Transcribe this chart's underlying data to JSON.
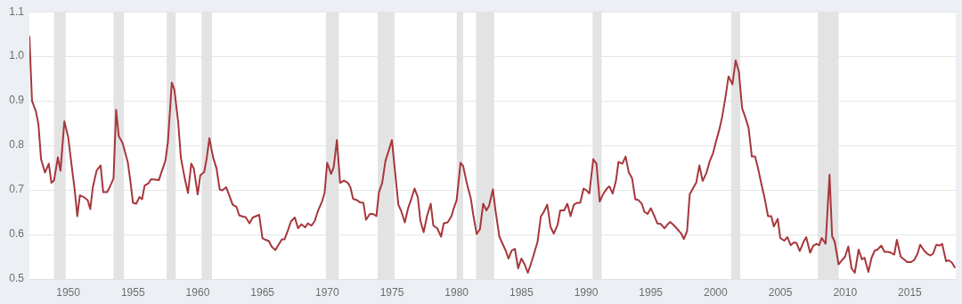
{
  "chart_data": {
    "type": "line",
    "x": [
      1947.0,
      1947.2,
      1947.5,
      1947.7,
      1947.9,
      1948.2,
      1948.5,
      1948.7,
      1948.9,
      1949.2,
      1949.4,
      1949.7,
      1950.0,
      1950.3,
      1950.5,
      1950.7,
      1950.9,
      1951.2,
      1951.5,
      1951.7,
      1951.9,
      1952.2,
      1952.5,
      1952.7,
      1953.0,
      1953.2,
      1953.5,
      1953.7,
      1953.9,
      1954.2,
      1954.6,
      1954.8,
      1955.0,
      1955.25,
      1955.5,
      1955.7,
      1955.9,
      1956.2,
      1956.4,
      1956.7,
      1957.0,
      1957.2,
      1957.5,
      1957.7,
      1958.0,
      1958.2,
      1958.5,
      1958.7,
      1959.0,
      1959.25,
      1959.5,
      1959.7,
      1960.0,
      1960.2,
      1960.5,
      1960.7,
      1960.9,
      1961.2,
      1961.45,
      1961.7,
      1961.9,
      1962.2,
      1962.4,
      1962.7,
      1963.0,
      1963.2,
      1963.5,
      1963.7,
      1964.0,
      1964.25,
      1964.5,
      1964.75,
      1965.0,
      1965.25,
      1965.5,
      1965.7,
      1966.0,
      1966.2,
      1966.5,
      1966.7,
      1967.0,
      1967.2,
      1967.5,
      1967.75,
      1968.0,
      1968.3,
      1968.5,
      1968.8,
      1969.05,
      1969.3,
      1969.6,
      1969.8,
      1970.0,
      1970.3,
      1970.5,
      1970.75,
      1971.0,
      1971.3,
      1971.6,
      1971.8,
      1972.0,
      1972.3,
      1972.55,
      1972.8,
      1973.0,
      1973.3,
      1973.55,
      1973.8,
      1974.0,
      1974.25,
      1974.5,
      1974.75,
      1975.0,
      1975.25,
      1975.5,
      1975.7,
      1976.0,
      1976.25,
      1976.5,
      1976.75,
      1977.0,
      1977.2,
      1977.45,
      1977.7,
      1978.0,
      1978.2,
      1978.5,
      1978.8,
      1979.0,
      1979.3,
      1979.6,
      1979.8,
      1980.0,
      1980.3,
      1980.5,
      1980.8,
      1981.1,
      1981.3,
      1981.55,
      1981.8,
      1982.05,
      1982.3,
      1982.5,
      1982.8,
      1983.0,
      1983.3,
      1983.55,
      1983.8,
      1984.0,
      1984.25,
      1984.5,
      1984.75,
      1985.0,
      1985.25,
      1985.5,
      1985.8,
      1986.0,
      1986.25,
      1986.5,
      1986.7,
      1987.0,
      1987.25,
      1987.5,
      1987.8,
      1988.0,
      1988.3,
      1988.55,
      1988.8,
      1989.05,
      1989.3,
      1989.55,
      1989.8,
      1990.0,
      1990.25,
      1990.55,
      1990.8,
      1991.05,
      1991.3,
      1991.6,
      1991.8,
      1992.05,
      1992.3,
      1992.5,
      1992.8,
      1993.05,
      1993.3,
      1993.55,
      1993.8,
      1994.05,
      1994.3,
      1994.5,
      1994.75,
      1995.0,
      1995.25,
      1995.5,
      1995.8,
      1996.05,
      1996.3,
      1996.5,
      1996.8,
      1997.05,
      1997.35,
      1997.55,
      1997.8,
      1998.0,
      1998.3,
      1998.5,
      1998.75,
      1999.0,
      1999.3,
      1999.55,
      1999.8,
      2000.0,
      2000.3,
      2000.5,
      2000.75,
      2001.0,
      2001.3,
      2001.55,
      2001.8,
      2002.05,
      2002.3,
      2002.55,
      2002.8,
      2003.05,
      2003.3,
      2003.5,
      2003.8,
      2004.05,
      2004.3,
      2004.5,
      2004.8,
      2005.0,
      2005.3,
      2005.55,
      2005.8,
      2006.05,
      2006.25,
      2006.5,
      2006.8,
      2007.0,
      2007.3,
      2007.55,
      2007.8,
      2008.0,
      2008.2,
      2008.5,
      2008.8,
      2009.0,
      2009.2,
      2009.5,
      2009.75,
      2010.0,
      2010.25,
      2010.5,
      2010.75,
      2011.05,
      2011.3,
      2011.5,
      2011.8,
      2012.05,
      2012.3,
      2012.5,
      2012.8,
      2013.05,
      2013.3,
      2013.55,
      2013.8,
      2014.0,
      2014.3,
      2014.6,
      2014.8,
      2015.1,
      2015.35,
      2015.6,
      2015.8,
      2016.1,
      2016.35,
      2016.6,
      2016.8,
      2017.05,
      2017.3,
      2017.5,
      2017.8,
      2018.0,
      2018.25,
      2018.5
    ],
    "series": [
      {
        "color": "#a6373c",
        "values": [
          1.046,
          0.9,
          0.877,
          0.847,
          0.769,
          0.739,
          0.759,
          0.716,
          0.721,
          0.773,
          0.743,
          0.854,
          0.818,
          0.746,
          0.7,
          0.641,
          0.688,
          0.684,
          0.677,
          0.657,
          0.706,
          0.744,
          0.755,
          0.695,
          0.695,
          0.706,
          0.726,
          0.88,
          0.821,
          0.805,
          0.762,
          0.72,
          0.671,
          0.669,
          0.684,
          0.679,
          0.71,
          0.715,
          0.724,
          0.723,
          0.722,
          0.74,
          0.765,
          0.808,
          0.941,
          0.925,
          0.85,
          0.772,
          0.726,
          0.693,
          0.759,
          0.748,
          0.69,
          0.733,
          0.74,
          0.772,
          0.816,
          0.772,
          0.749,
          0.701,
          0.699,
          0.706,
          0.691,
          0.667,
          0.662,
          0.643,
          0.64,
          0.639,
          0.625,
          0.638,
          0.641,
          0.644,
          0.592,
          0.588,
          0.585,
          0.573,
          0.565,
          0.575,
          0.589,
          0.589,
          0.612,
          0.629,
          0.638,
          0.614,
          0.623,
          0.616,
          0.625,
          0.62,
          0.631,
          0.654,
          0.674,
          0.693,
          0.761,
          0.736,
          0.751,
          0.812,
          0.716,
          0.721,
          0.716,
          0.705,
          0.68,
          0.677,
          0.672,
          0.671,
          0.633,
          0.646,
          0.646,
          0.641,
          0.695,
          0.716,
          0.765,
          0.788,
          0.812,
          0.739,
          0.667,
          0.654,
          0.627,
          0.659,
          0.68,
          0.703,
          0.684,
          0.631,
          0.605,
          0.64,
          0.669,
          0.62,
          0.614,
          0.595,
          0.625,
          0.627,
          0.641,
          0.661,
          0.677,
          0.761,
          0.754,
          0.713,
          0.68,
          0.641,
          0.601,
          0.612,
          0.669,
          0.654,
          0.664,
          0.701,
          0.654,
          0.595,
          0.579,
          0.563,
          0.546,
          0.564,
          0.568,
          0.524,
          0.546,
          0.533,
          0.514,
          0.54,
          0.559,
          0.584,
          0.64,
          0.649,
          0.667,
          0.617,
          0.602,
          0.622,
          0.654,
          0.654,
          0.669,
          0.641,
          0.667,
          0.671,
          0.671,
          0.703,
          0.7,
          0.692,
          0.769,
          0.759,
          0.674,
          0.69,
          0.703,
          0.708,
          0.692,
          0.72,
          0.763,
          0.759,
          0.775,
          0.739,
          0.726,
          0.679,
          0.677,
          0.669,
          0.651,
          0.646,
          0.659,
          0.643,
          0.625,
          0.623,
          0.614,
          0.623,
          0.628,
          0.62,
          0.612,
          0.602,
          0.59,
          0.608,
          0.69,
          0.706,
          0.716,
          0.755,
          0.72,
          0.739,
          0.765,
          0.782,
          0.805,
          0.837,
          0.863,
          0.906,
          0.955,
          0.937,
          0.991,
          0.965,
          0.883,
          0.863,
          0.839,
          0.775,
          0.775,
          0.746,
          0.718,
          0.68,
          0.641,
          0.641,
          0.618,
          0.635,
          0.592,
          0.586,
          0.594,
          0.576,
          0.582,
          0.581,
          0.563,
          0.584,
          0.594,
          0.559,
          0.575,
          0.579,
          0.576,
          0.592,
          0.579,
          0.734,
          0.596,
          0.584,
          0.533,
          0.542,
          0.55,
          0.573,
          0.524,
          0.514,
          0.566,
          0.544,
          0.548,
          0.516,
          0.548,
          0.564,
          0.566,
          0.575,
          0.561,
          0.561,
          0.559,
          0.555,
          0.588,
          0.55,
          0.543,
          0.538,
          0.538,
          0.543,
          0.557,
          0.577,
          0.564,
          0.557,
          0.553,
          0.557,
          0.577,
          0.575,
          0.579,
          0.54,
          0.542,
          0.537,
          0.525
        ]
      }
    ],
    "xlim": [
      1947,
      2018.55
    ],
    "xticks": [
      1950,
      1955,
      1960,
      1965,
      1970,
      1975,
      1980,
      1985,
      1990,
      1995,
      2000,
      2005,
      2010,
      2015
    ],
    "ylim": [
      0.5,
      1.1
    ],
    "yticks": [
      0.5,
      0.6,
      0.7,
      0.8,
      0.9,
      {
        "value": 1.0,
        "label": "1.0"
      },
      1.1
    ],
    "grid": "y",
    "legend": false,
    "marker": "none",
    "line_style": "solid",
    "bands": [
      {
        "axis": "x",
        "from": 1948.9,
        "to": 1949.8,
        "color": "#e3e3e3"
      },
      {
        "axis": "x",
        "from": 1953.5,
        "to": 1954.3,
        "color": "#e3e3e3"
      },
      {
        "axis": "x",
        "from": 1957.6,
        "to": 1958.3,
        "color": "#e3e3e3"
      },
      {
        "axis": "x",
        "from": 1960.3,
        "to": 1961.1,
        "color": "#e3e3e3"
      },
      {
        "axis": "x",
        "from": 1969.9,
        "to": 1970.9,
        "color": "#e3e3e3"
      },
      {
        "axis": "x",
        "from": 1973.9,
        "to": 1975.2,
        "color": "#e3e3e3"
      },
      {
        "axis": "x",
        "from": 1980.0,
        "to": 1980.5,
        "color": "#e3e3e3"
      },
      {
        "axis": "x",
        "from": 1981.5,
        "to": 1982.9,
        "color": "#e3e3e3"
      },
      {
        "axis": "x",
        "from": 1990.5,
        "to": 1991.2,
        "color": "#e3e3e3"
      },
      {
        "axis": "x",
        "from": 2001.2,
        "to": 2001.9,
        "color": "#e3e3e3"
      },
      {
        "axis": "x",
        "from": 2007.9,
        "to": 2009.5,
        "color": "#e3e3e3"
      }
    ]
  }
}
